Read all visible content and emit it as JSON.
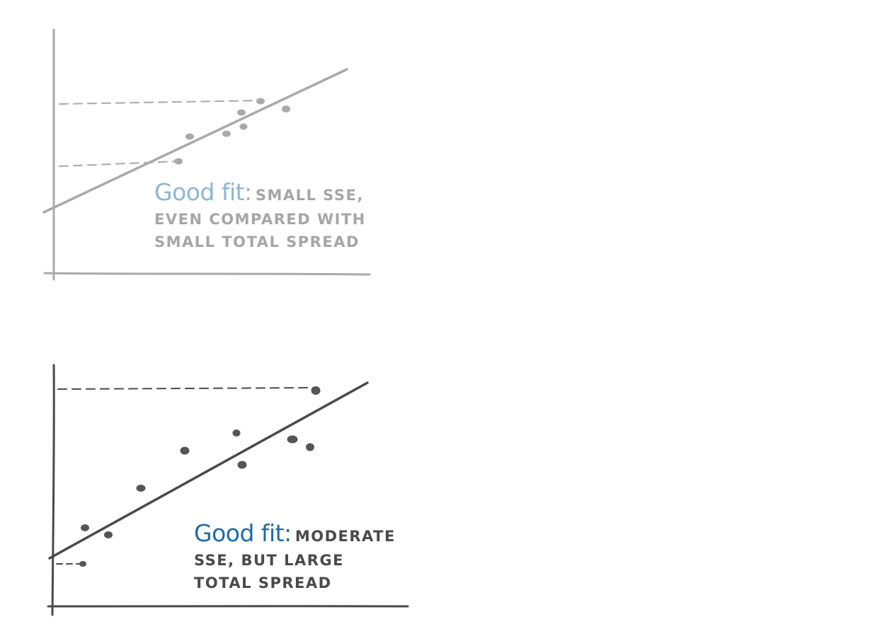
{
  "panels": [
    {
      "caption_lead": "Good fit:",
      "caption_line1": "SMALL SSE,",
      "caption_line2": "EVEN COMPARED WITH",
      "caption_line3": "SMALL TOTAL SPREAD",
      "colors": {
        "ink": "#a6a6a6",
        "accent": "#8ab6d6"
      }
    },
    {
      "caption_lead": "Good fit:",
      "caption_line1": "MODERATE",
      "caption_line2": "SSE, BUT LARGE",
      "caption_line3": "TOTAL SPREAD",
      "colors": {
        "ink": "#4a4a4a",
        "accent": "#1f6aa8"
      }
    }
  ]
}
